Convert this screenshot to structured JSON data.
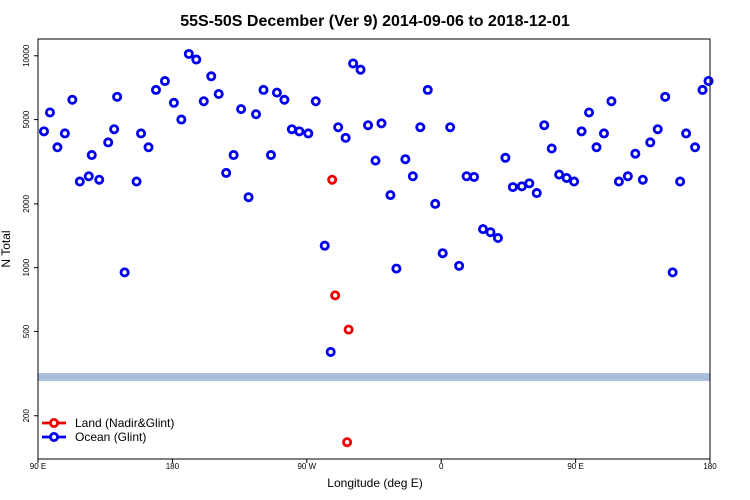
{
  "chart_data": {
    "type": "scatter",
    "title": "55S-50S December (Ver 9)   2014-09-06 to 2018-12-01",
    "xlabel": "Longitude (deg E)",
    "ylabel": "N Total",
    "x_ticks": [
      "90 E",
      "180",
      "90 W",
      "0",
      "90 E",
      "180"
    ],
    "x_tick_values": [
      90,
      180,
      270,
      360,
      450,
      540
    ],
    "xlim": [
      90,
      540
    ],
    "y_scale": "log",
    "ylim": [
      125,
      12000
    ],
    "y_ticks": [
      "200",
      "500",
      "1000",
      "2000",
      "5000",
      "10000"
    ],
    "y_tick_values": [
      200,
      500,
      1000,
      2000,
      5000,
      10000
    ],
    "band": {
      "y_low": 292,
      "y_high": 318,
      "color": "#a9bedc"
    },
    "series": [
      {
        "name": "Land (Nadir&Glint)",
        "color": "#ee0000",
        "points": [
          [
            287,
            2600
          ],
          [
            289,
            740
          ],
          [
            298,
            510
          ],
          [
            297,
            150
          ]
        ]
      },
      {
        "name": "Ocean (Glint)",
        "color": "#0000ee",
        "points": [
          [
            94,
            4400
          ],
          [
            98,
            5400
          ],
          [
            103,
            3700
          ],
          [
            108,
            4300
          ],
          [
            113,
            6200
          ],
          [
            118,
            2550
          ],
          [
            124,
            2700
          ],
          [
            131,
            2600
          ],
          [
            126,
            3400
          ],
          [
            137,
            3900
          ],
          [
            141,
            4500
          ],
          [
            143,
            6400
          ],
          [
            148,
            950
          ],
          [
            156,
            2550
          ],
          [
            159,
            4300
          ],
          [
            164,
            3700
          ],
          [
            169,
            6900
          ],
          [
            175,
            7600
          ],
          [
            181,
            6000
          ],
          [
            186,
            5000
          ],
          [
            191,
            10200
          ],
          [
            196,
            9600
          ],
          [
            201,
            6100
          ],
          [
            206,
            8000
          ],
          [
            211,
            6600
          ],
          [
            216,
            2800
          ],
          [
            221,
            3400
          ],
          [
            226,
            5600
          ],
          [
            231,
            2150
          ],
          [
            236,
            5300
          ],
          [
            241,
            6900
          ],
          [
            246,
            3400
          ],
          [
            250,
            6700
          ],
          [
            255,
            6200
          ],
          [
            260,
            4500
          ],
          [
            265,
            4400
          ],
          [
            271,
            4300
          ],
          [
            276,
            6100
          ],
          [
            282,
            1270
          ],
          [
            286,
            400
          ],
          [
            291,
            4600
          ],
          [
            296,
            4100
          ],
          [
            301,
            9200
          ],
          [
            306,
            8600
          ],
          [
            311,
            4700
          ],
          [
            316,
            3200
          ],
          [
            320,
            4800
          ],
          [
            326,
            2200
          ],
          [
            330,
            990
          ],
          [
            336,
            3250
          ],
          [
            341,
            2700
          ],
          [
            346,
            4600
          ],
          [
            351,
            6900
          ],
          [
            356,
            2000
          ],
          [
            361,
            1170
          ],
          [
            366,
            4600
          ],
          [
            372,
            1020
          ],
          [
            377,
            2700
          ],
          [
            382,
            2680
          ],
          [
            388,
            1520
          ],
          [
            393,
            1470
          ],
          [
            398,
            1380
          ],
          [
            403,
            3300
          ],
          [
            408,
            2400
          ],
          [
            414,
            2420
          ],
          [
            419,
            2500
          ],
          [
            424,
            2250
          ],
          [
            429,
            4700
          ],
          [
            434,
            3650
          ],
          [
            439,
            2750
          ],
          [
            444,
            2650
          ],
          [
            449,
            2550
          ],
          [
            454,
            4400
          ],
          [
            459,
            5400
          ],
          [
            464,
            3700
          ],
          [
            469,
            4300
          ],
          [
            474,
            6100
          ],
          [
            479,
            2550
          ],
          [
            485,
            2700
          ],
          [
            490,
            3450
          ],
          [
            495,
            2600
          ],
          [
            500,
            3900
          ],
          [
            505,
            4500
          ],
          [
            510,
            6400
          ],
          [
            515,
            950
          ],
          [
            520,
            2550
          ],
          [
            524,
            4300
          ],
          [
            530,
            3700
          ],
          [
            535,
            6900
          ],
          [
            539,
            7600
          ]
        ]
      }
    ],
    "legend": [
      {
        "label": "Land (Nadir&Glint)",
        "color": "#ee0000"
      },
      {
        "label": "Ocean (Glint)",
        "color": "#0000ee"
      }
    ],
    "legend_position": "bottom-left"
  }
}
